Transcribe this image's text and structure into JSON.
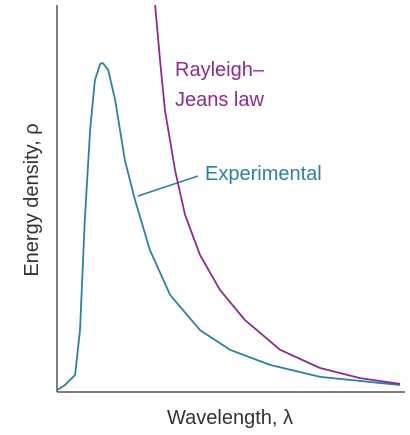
{
  "chart_data": {
    "type": "line",
    "xlabel": "Wavelength, λ",
    "ylabel": "Energy density, ρ",
    "xlim": [
      0,
      100
    ],
    "ylim": [
      0,
      100
    ],
    "series": [
      {
        "name": "Experimental",
        "color": "#2f7fa0",
        "x": [
          0,
          2.3,
          5.2,
          6.6,
          8.0,
          9.5,
          10.9,
          12.4,
          13.2,
          14.7,
          16.7,
          19.5,
          22.4,
          26.7,
          32.5,
          41.1,
          49.7,
          61.2,
          75.6,
          98.6
        ],
        "values": [
          0.5,
          1.8,
          4.4,
          16.0,
          44.4,
          67.7,
          80.6,
          84.8,
          85.0,
          83.2,
          75.5,
          59.9,
          49.6,
          36.7,
          25.1,
          16.0,
          10.9,
          7.0,
          3.9,
          1.8
        ]
      },
      {
        "name": "Rayleigh–Jeans law",
        "color": "#8b2c8e",
        "x": [
          28.2,
          29.6,
          31.0,
          33.9,
          36.8,
          41.1,
          46.8,
          54.0,
          64.1,
          75.6,
          87.1,
          98.6
        ],
        "values": [
          100,
          85.8,
          72.9,
          57.4,
          45.7,
          35.4,
          26.4,
          18.6,
          10.9,
          6.2,
          3.6,
          2.1
        ]
      }
    ]
  }
}
